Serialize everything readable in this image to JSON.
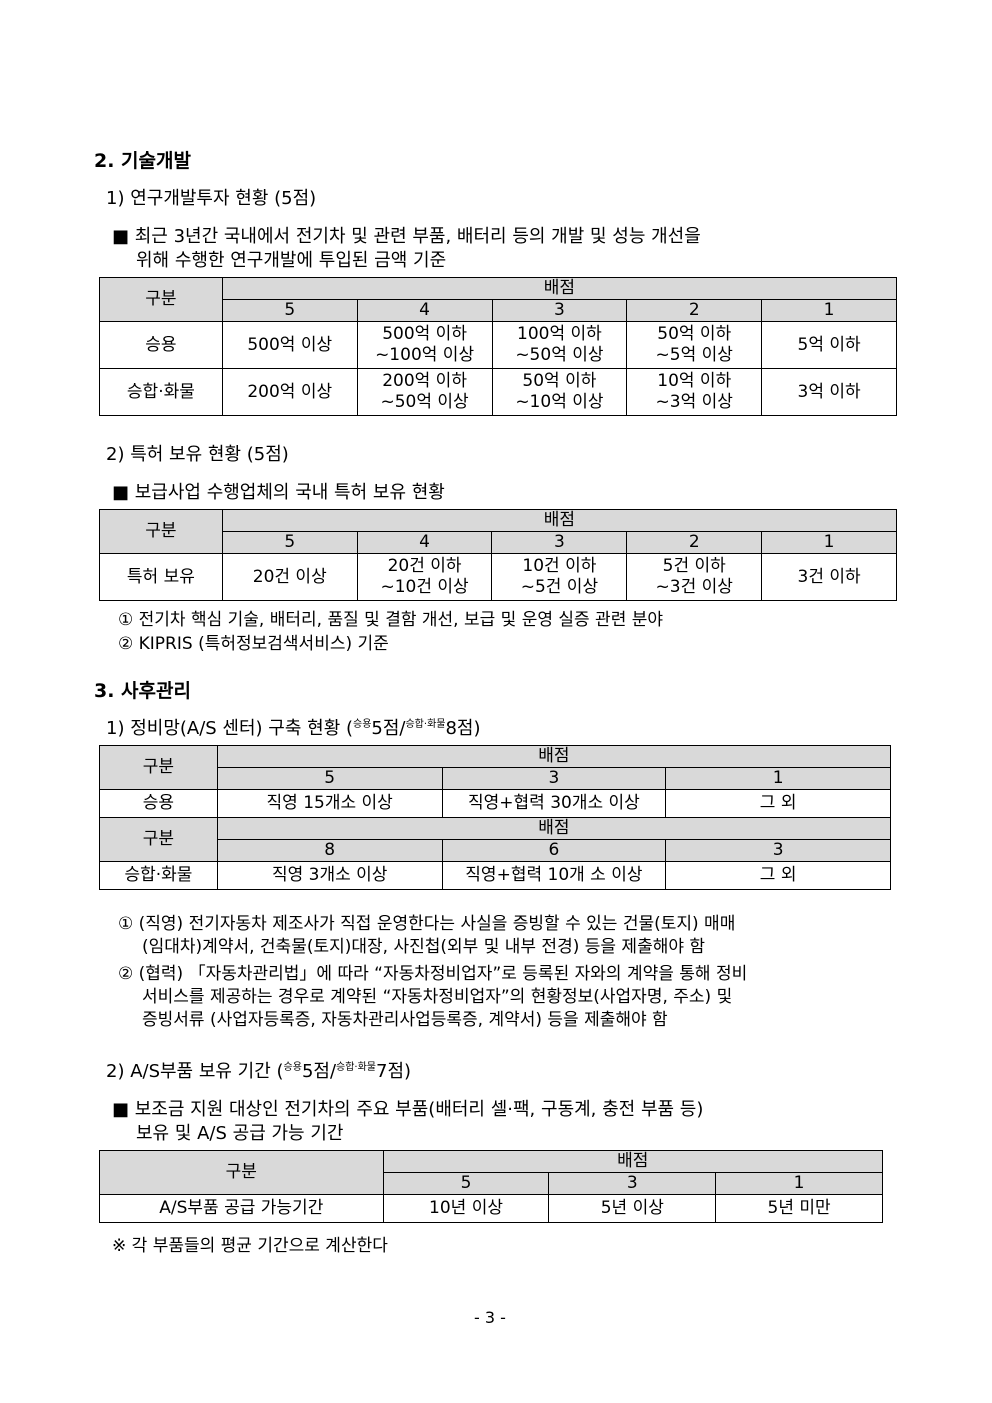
{
  "sec2": {
    "title": "2. 기술개발",
    "s1": {
      "title": "1) 연구개발투자 현황 (5점)",
      "bullet_l1": "■ 최근 3년간 국내에서 전기차 및 관련 부품, 배터리 등의 개발 및 성능 개선을",
      "bullet_l2": "위해 수행한 연구개발에 투입된 금액 기준",
      "table": {
        "h1": "구분",
        "h2": "배점",
        "scores": [
          "5",
          "4",
          "3",
          "2",
          "1"
        ],
        "rows": [
          {
            "label": "승용",
            "cells": [
              "500억 이상",
              "500억 이하\n~100억 이상",
              "100억 이하\n~50억 이상",
              "50억 이하\n~5억 이상",
              "5억 이하"
            ]
          },
          {
            "label": "승합·화물",
            "cells": [
              "200억 이상",
              "200억 이하\n~50억 이상",
              "50억 이하\n~10억 이상",
              "10억 이하\n~3억 이상",
              "3억 이하"
            ]
          }
        ]
      }
    },
    "s2": {
      "title": "2) 특허 보유 현황 (5점)",
      "bullet": "■ 보급사업 수행업체의 국내 특허 보유 현황",
      "table": {
        "h1": "구분",
        "h2": "배점",
        "scores": [
          "5",
          "4",
          "3",
          "2",
          "1"
        ],
        "rows": [
          {
            "label": "특허 보유",
            "cells": [
              "20건 이상",
              "20건 이하\n~10건 이상",
              "10건 이하\n~5건 이상",
              "5건 이하\n~3건 이상",
              "3건 이하"
            ]
          }
        ]
      },
      "notes": [
        "① 전기차 핵심 기술, 배터리, 품질 및 결함 개선, 보급 및 운영 실증 관련 분야",
        "② KIPRIS (특허정보검색서비스) 기준"
      ]
    }
  },
  "sec3": {
    "title": "3. 사후관리",
    "s1": {
      "title_pre": "1) 정비망(A/S 센터) 구축 현황 (",
      "sup1": "승용",
      "mid1": "5점/",
      "sup2": "승합·화물",
      "end": "8점)",
      "table": {
        "h1": "구분",
        "h2": "배점",
        "scores_a": [
          "5",
          "3",
          "1"
        ],
        "row_a": {
          "label": "승용",
          "cells": [
            "직영 15개소 이상",
            "직영+협력 30개소 이상",
            "그 외"
          ]
        },
        "scores_b": [
          "8",
          "6",
          "3"
        ],
        "row_b": {
          "label": "승합·화물",
          "cells": [
            "직영 3개소 이상",
            "직영+협력 10개 소 이상",
            "그 외"
          ]
        }
      },
      "notes": [
        [
          "① (직영) 전기자동차 제조사가 직접 운영한다는 사실을 증빙할 수 있는 건물(토지) 매매",
          "(임대차)계약서, 건축물(토지)대장, 사진첩(외부 및 내부 전경) 등을 제출해야 함"
        ],
        [
          "② (협력) 「자동차관리법」에 따라 “자동차정비업자”로 등록된 자와의 계약을 통해 정비",
          "서비스를 제공하는 경우로 계약된 “자동차정비업자”의 현황정보(사업자명, 주소) 및",
          "증빙서류 (사업자등록증, 자동차관리사업등록증, 계약서) 등을 제출해야 함"
        ]
      ]
    },
    "s2": {
      "title_pre": "2) A/S부품 보유 기간 (",
      "sup1": "승용",
      "mid1": "5점/",
      "sup2": "승합·화물",
      "end": "7점)",
      "bullet_l1": "■ 보조금 지원 대상인 전기차의 주요 부품(배터리 셀·팩, 구동계, 충전 부품 등)",
      "bullet_l2": "보유 및 A/S 공급 가능 기간",
      "table": {
        "h1": "구분",
        "h2": "배점",
        "scores": [
          "5",
          "3",
          "1"
        ],
        "row": {
          "label": "A/S부품 공급 가능기간",
          "cells": [
            "10년 이상",
            "5년 이상",
            "5년 미만"
          ]
        }
      },
      "note": "※ 각 부품들의 평균 기간으로 계산한다"
    }
  },
  "page_number": "- 3 -"
}
